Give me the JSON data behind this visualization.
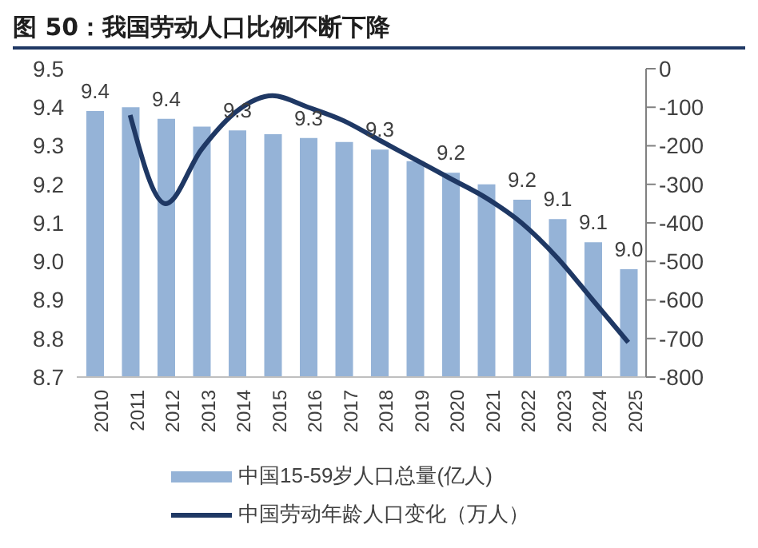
{
  "chart_data": {
    "type": "bar",
    "title": "图 50：我国劳动人口比例不断下降",
    "categories": [
      "2010",
      "2011",
      "2012",
      "2013",
      "2014",
      "2015",
      "2016",
      "2017",
      "2018",
      "2019",
      "2020",
      "2021",
      "2022",
      "2023",
      "2024",
      "2025"
    ],
    "series": [
      {
        "name": "中国15-59岁人口总量(亿人)",
        "color": "#95b3d7",
        "values": [
          9.39,
          9.4,
          9.37,
          9.35,
          9.34,
          9.33,
          9.32,
          9.31,
          9.29,
          9.26,
          9.23,
          9.2,
          9.16,
          9.11,
          9.05,
          8.98
        ],
        "value_labels": [
          "9.4",
          null,
          "9.4",
          null,
          "9.3",
          null,
          "9.3",
          null,
          "9.3",
          null,
          "9.2",
          null,
          "9.2",
          "9.1",
          "9.1",
          "9.0"
        ]
      },
      {
        "name": "中国劳动年龄人口变化（万人）",
        "type": "line",
        "axis": "y2",
        "color": "#1f3864",
        "values": [
          null,
          -120,
          -350,
          -210,
          -110,
          -70,
          -100,
          -135,
          -185,
          -235,
          -285,
          -335,
          -400,
          -490,
          -600,
          -710
        ]
      }
    ],
    "ylim": [
      8.7,
      9.5
    ],
    "yticks": [
      {
        "value": 8.7,
        "label": "8.7"
      },
      {
        "value": 8.8,
        "label": "8.8"
      },
      {
        "value": 8.9,
        "label": "8.9"
      },
      {
        "value": 9.0,
        "label": "9.0"
      },
      {
        "value": 9.1,
        "label": "9.1"
      },
      {
        "value": 9.2,
        "label": "9.2"
      },
      {
        "value": 9.3,
        "label": "9.3"
      },
      {
        "value": 9.4,
        "label": "9.4"
      },
      {
        "value": 9.5,
        "label": "9.5"
      }
    ],
    "y2lim": [
      -800,
      0
    ],
    "y2ticks": [
      -800,
      -700,
      -600,
      -500,
      -400,
      -300,
      -200,
      -100,
      0
    ],
    "legend": "bottom",
    "marker": "none"
  }
}
